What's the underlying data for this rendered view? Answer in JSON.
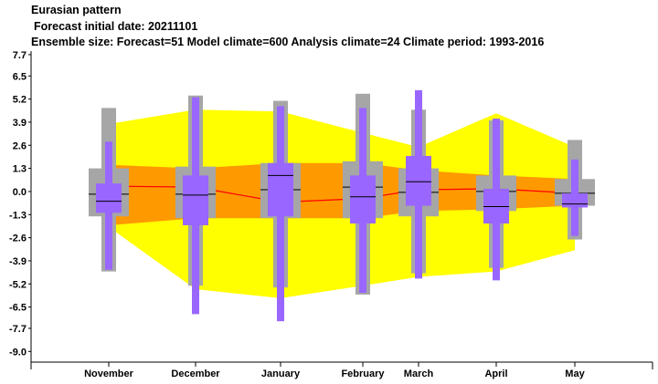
{
  "header": {
    "title": "Eurasian pattern",
    "init_line": "Forecast initial date: 20211101",
    "ensemble_line": "Ensemble size: Forecast=51 Model climate=600 Analysis climate=24   Climate period: 1993-2016"
  },
  "chart_data": {
    "type": "box",
    "categories": [
      "November",
      "December",
      "January",
      "February",
      "March",
      "April",
      "May"
    ],
    "y_ticks": [
      "7.7",
      "6.5",
      "5.2",
      "3.9",
      "2.6",
      "1.3",
      "0.0",
      "-1.3",
      "-2.6",
      "-3.9",
      "-5.2",
      "-6.5",
      "-7.7",
      "-9.0"
    ],
    "ylim": [
      -9.6,
      7.9
    ],
    "grid": false,
    "legend": "none",
    "colors": {
      "climate_outer": "#ffff00",
      "climate_inner": "#ff9900",
      "median_line": "#ff0000",
      "model_box": "#a6a6a6",
      "forecast_box": "#9966ff"
    },
    "climate_band": {
      "outer_low": [
        -2.0,
        -5.5,
        -6.0,
        -5.3,
        -4.8,
        -4.5,
        -3.3
      ],
      "outer_high": [
        3.8,
        4.6,
        4.5,
        3.3,
        2.5,
        4.4,
        2.5
      ],
      "inner_low": [
        -1.9,
        -1.5,
        -1.5,
        -1.5,
        -1.1,
        -1.0,
        -0.8
      ],
      "inner_high": [
        1.5,
        1.3,
        1.6,
        1.6,
        1.2,
        0.9,
        0.7
      ],
      "median": [
        0.3,
        0.25,
        -0.6,
        -0.4,
        0.1,
        0.15,
        -0.1
      ]
    },
    "model_climate": [
      {
        "whisker_low": -4.5,
        "p25": -1.4,
        "median": -0.15,
        "p75": 1.3,
        "whisker_high": 4.7
      },
      {
        "whisker_low": -5.3,
        "p25": -1.5,
        "median": -0.15,
        "p75": 1.4,
        "whisker_high": 5.4
      },
      {
        "whisker_low": -5.4,
        "p25": -1.5,
        "median": 0.1,
        "p75": 1.6,
        "whisker_high": 5.1
      },
      {
        "whisker_low": -5.8,
        "p25": -1.5,
        "median": 0.25,
        "p75": 1.7,
        "whisker_high": 5.5
      },
      {
        "whisker_low": -4.6,
        "p25": -1.4,
        "median": -0.05,
        "p75": 1.3,
        "whisker_high": 4.6
      },
      {
        "whisker_low": -4.3,
        "p25": -1.1,
        "median": 0.0,
        "p75": 0.9,
        "whisker_high": 4.0
      },
      {
        "whisker_low": -2.7,
        "p25": -0.8,
        "median": -0.1,
        "p75": 0.7,
        "whisker_high": 2.9
      }
    ],
    "forecast": [
      {
        "min": -4.4,
        "p25": -1.2,
        "median": -0.55,
        "p75": 0.45,
        "max": 2.8
      },
      {
        "min": -6.9,
        "p25": -1.9,
        "median": -0.2,
        "p75": 0.9,
        "max": 5.3
      },
      {
        "min": -7.3,
        "p25": -1.4,
        "median": 0.9,
        "p75": 1.6,
        "max": 4.8
      },
      {
        "min": -5.7,
        "p25": -1.8,
        "median": -0.3,
        "p75": 0.9,
        "max": 4.7
      },
      {
        "min": -4.9,
        "p25": -0.8,
        "median": 0.55,
        "p75": 2.0,
        "max": 5.7
      },
      {
        "min": -5.0,
        "p25": -1.8,
        "median": -0.85,
        "p75": 0.15,
        "max": 4.1
      },
      {
        "min": -2.5,
        "p25": -0.9,
        "median": -0.7,
        "p75": -0.1,
        "max": 1.8
      }
    ]
  }
}
